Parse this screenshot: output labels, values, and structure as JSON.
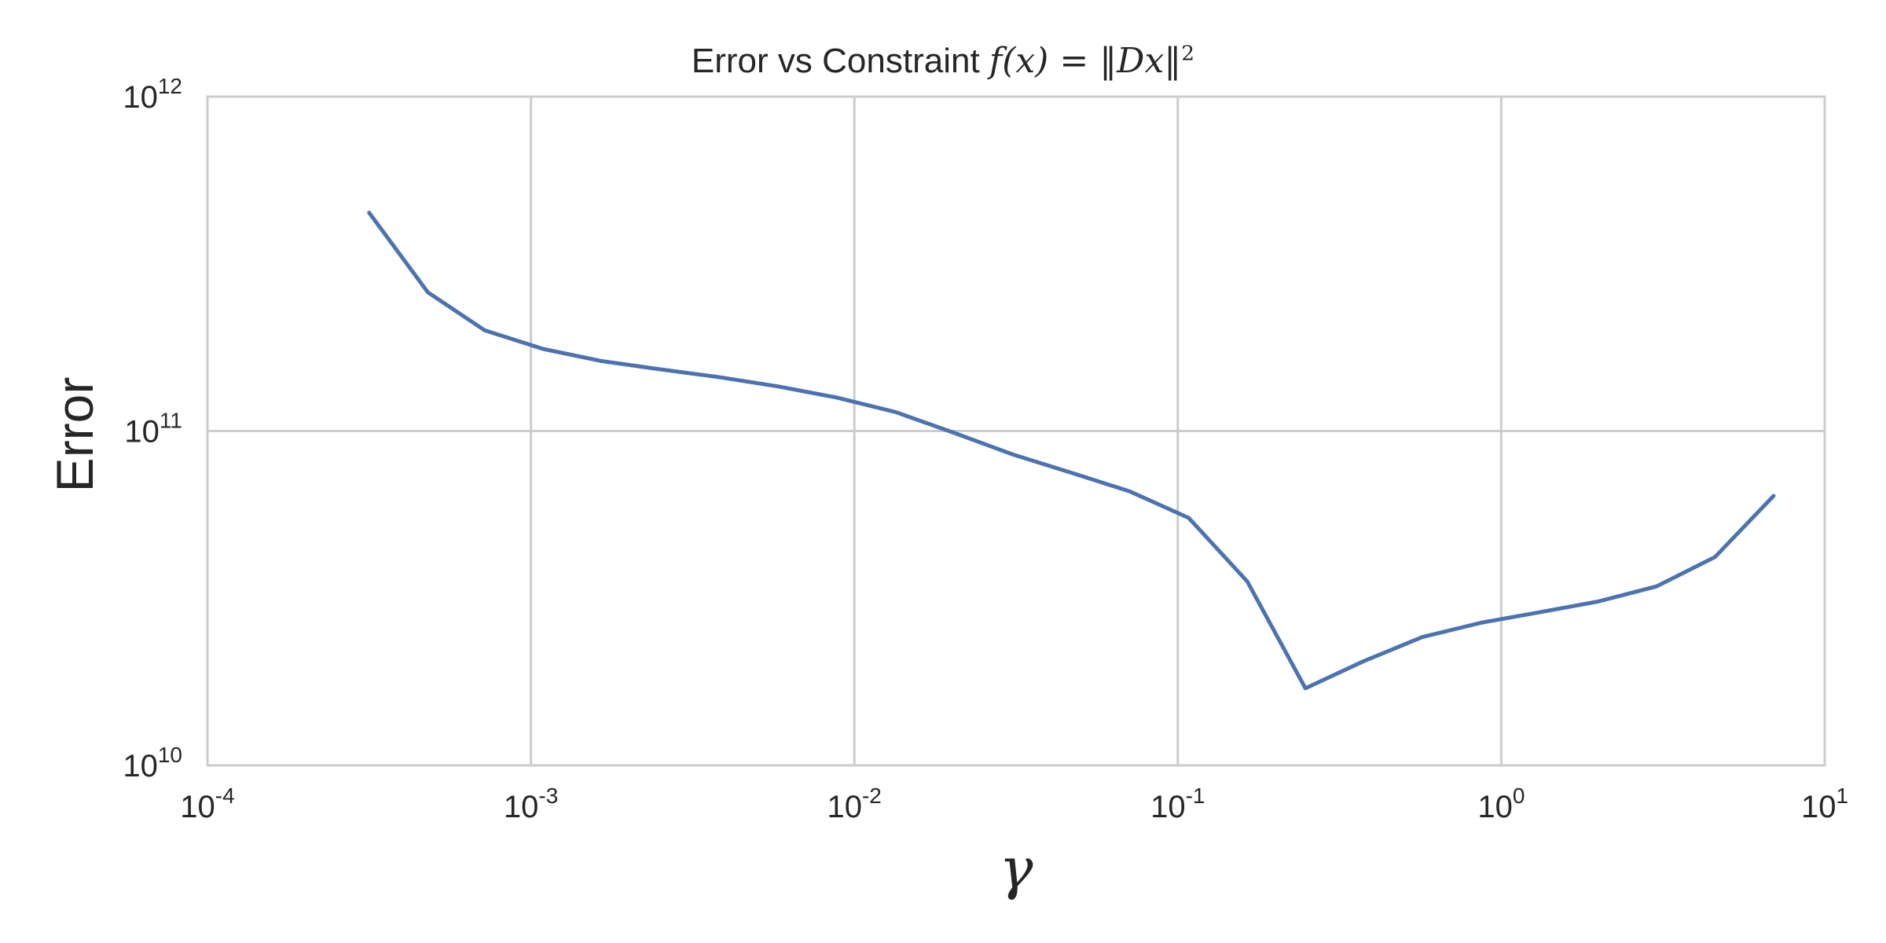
{
  "chart_data": {
    "type": "line",
    "title": "Error vs Constraint",
    "title_math": {
      "lhs": "f(x) = ‖Dx‖",
      "exponent": "2"
    },
    "xlabel": "γ",
    "ylabel": "Error",
    "xscale": "log",
    "yscale": "log",
    "xlim": [
      0.0001,
      10
    ],
    "ylim": [
      10000000000,
      1000000000000
    ],
    "grid": true,
    "x_ticks": [
      {
        "value": 0.0001,
        "base": "10",
        "exp": "-4"
      },
      {
        "value": 0.001,
        "base": "10",
        "exp": "-3"
      },
      {
        "value": 0.01,
        "base": "10",
        "exp": "-2"
      },
      {
        "value": 0.1,
        "base": "10",
        "exp": "-1"
      },
      {
        "value": 1,
        "base": "10",
        "exp": "0"
      },
      {
        "value": 10,
        "base": "10",
        "exp": "1"
      }
    ],
    "y_ticks": [
      {
        "value": 10000000000,
        "base": "10",
        "exp": "10"
      },
      {
        "value": 100000000000,
        "base": "10",
        "exp": "11"
      },
      {
        "value": 1000000000000,
        "base": "10",
        "exp": "12"
      }
    ],
    "series": [
      {
        "color": "#4c72b0",
        "x": [
          0.000316,
          0.00048,
          0.00072,
          0.00109,
          0.00165,
          0.0025,
          0.0038,
          0.0058,
          0.0088,
          0.0134,
          0.0202,
          0.031,
          0.047,
          0.071,
          0.108,
          0.164,
          0.248,
          0.376,
          0.57,
          0.865,
          1.31,
          1.99,
          3.02,
          4.58,
          6.95
        ],
        "y": [
          450000000000,
          260000000000,
          200000000000,
          176000000000,
          162000000000,
          153000000000,
          145000000000,
          136000000000,
          126000000000,
          114000000000,
          99000000000,
          85000000000,
          75000000000,
          66000000000,
          55000000000,
          35500000000,
          17000000000,
          20500000000,
          24200000000,
          26700000000,
          28700000000,
          30900000000,
          34300000000,
          42000000000,
          64000000000
        ]
      }
    ]
  }
}
